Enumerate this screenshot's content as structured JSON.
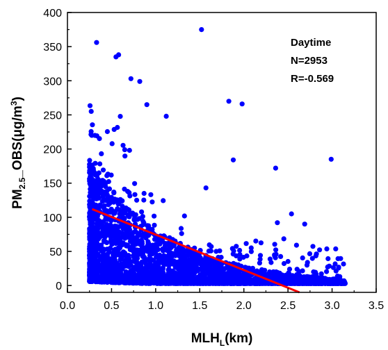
{
  "chart_data": {
    "type": "scatter",
    "title": "",
    "xlabel": {
      "main": "MLH",
      "sub": "L",
      "tail": "(km)"
    },
    "ylabel": {
      "main": "PM",
      "sub": "2.5",
      "tail": "_OBS(μg/m",
      "sup": "3",
      "close": ")"
    },
    "xlim": [
      0.0,
      3.5
    ],
    "ylim": [
      -10,
      400
    ],
    "x_ticks": [
      "0.0",
      "0.5",
      "1.0",
      "1.5",
      "2.0",
      "2.5",
      "3.0",
      "3.5"
    ],
    "y_ticks": [
      "0",
      "50",
      "100",
      "150",
      "200",
      "250",
      "300",
      "350",
      "400"
    ],
    "grid": false,
    "annotations": [
      "Daytime",
      "N=2953",
      "R=-0.569"
    ],
    "colors": {
      "points": "#0000ff",
      "fit_line": "#ff0000",
      "axes": "#000000"
    },
    "fit_line": {
      "x": [
        0.28,
        2.63
      ],
      "y": [
        112,
        -10
      ]
    },
    "outliers": {
      "x": [
        0.33,
        0.55,
        0.58,
        0.72,
        0.82,
        0.9,
        1.12,
        1.52,
        1.83,
        1.98,
        1.88,
        2.36,
        2.99,
        2.54,
        2.38,
        1.57,
        2.69
      ],
      "y": [
        356,
        335,
        338,
        303,
        299,
        265,
        248,
        375,
        270,
        266,
        184,
        172,
        185,
        105,
        92,
        143,
        90
      ]
    },
    "series": [
      {
        "x_range": [
          0.25,
          3.15
        ],
        "count": 2953,
        "trend": "y decreases with x; dense cloud near y=0-150 at x=0.3-1.0, thinning toward x=3.1"
      }
    ]
  }
}
